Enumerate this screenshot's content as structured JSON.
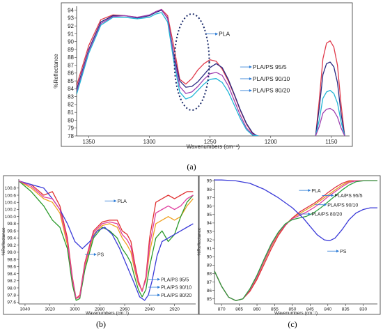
{
  "chart_data": [
    {
      "panel": "(a)",
      "type": "line",
      "xlabel": "Wavenumbers (cm⁻¹)",
      "ylabel": "%Reflectance",
      "xlim": [
        1360,
        1135
      ],
      "ylim": [
        78,
        94.5
      ],
      "xticks": [
        1350,
        1300,
        1250,
        1200,
        1150
      ],
      "yticks": [
        78,
        79,
        80,
        81,
        82,
        83,
        84,
        85,
        86,
        87,
        88,
        89,
        90,
        91,
        92,
        93,
        94
      ],
      "grid": false,
      "series": [
        {
          "name": "PLA",
          "color": "#e0394a",
          "x": [
            1360,
            1350,
            1340,
            1330,
            1320,
            1310,
            1300,
            1295,
            1290,
            1285,
            1280,
            1275,
            1270,
            1265,
            1260,
            1255,
            1250,
            1245,
            1240,
            1235,
            1230,
            1225,
            1220,
            1215,
            1212
          ],
          "y": [
            84.4,
            89.5,
            92.8,
            93.4,
            93.3,
            93.1,
            93.3,
            93.8,
            94.1,
            93.3,
            89.5,
            85.2,
            84.6,
            85.3,
            86.4,
            87.2,
            87.7,
            87.5,
            86.5,
            85,
            83.2,
            81.2,
            79.5,
            78.3,
            78
          ]
        },
        {
          "name": "PLA/PS 95/5",
          "color": "#2a2a82",
          "x": [
            1360,
            1350,
            1340,
            1330,
            1320,
            1310,
            1300,
            1295,
            1290,
            1285,
            1280,
            1275,
            1270,
            1265,
            1260,
            1255,
            1250,
            1245,
            1240,
            1235,
            1230,
            1225,
            1220,
            1215,
            1211
          ],
          "y": [
            83.9,
            89,
            92.5,
            93.3,
            93.3,
            93,
            93.3,
            93.7,
            94,
            93,
            88.5,
            85,
            84.2,
            84.3,
            84.9,
            85.8,
            86.7,
            87.2,
            86.7,
            85.2,
            83.3,
            81.3,
            79.6,
            78.4,
            78
          ]
        },
        {
          "name": "PLA/PS 90/10",
          "color": "#a040b0",
          "x": [
            1360,
            1350,
            1340,
            1330,
            1320,
            1310,
            1300,
            1295,
            1290,
            1285,
            1280,
            1275,
            1270,
            1265,
            1260,
            1255,
            1250,
            1245,
            1240,
            1235,
            1230,
            1225,
            1220,
            1215,
            1210
          ],
          "y": [
            83.6,
            88.8,
            92.3,
            93.2,
            93.3,
            93.1,
            93.4,
            93.8,
            94.1,
            92.9,
            88.2,
            84.3,
            83.4,
            83.6,
            84.3,
            85.2,
            85.9,
            86.1,
            85.7,
            84.4,
            82.5,
            80.6,
            79,
            78.2,
            78
          ]
        },
        {
          "name": "PLA/PS 80/20",
          "color": "#1fb5d6",
          "x": [
            1360,
            1350,
            1340,
            1330,
            1320,
            1310,
            1300,
            1295,
            1290,
            1285,
            1280,
            1275,
            1270,
            1265,
            1260,
            1255,
            1250,
            1245,
            1240,
            1235,
            1230,
            1225,
            1220,
            1215,
            1210
          ],
          "y": [
            83.3,
            88.5,
            92.1,
            93.1,
            93.1,
            92.9,
            93.1,
            93.5,
            93.7,
            92.5,
            87.6,
            83.6,
            82.7,
            83,
            83.8,
            84.6,
            85.2,
            85.3,
            84.8,
            83.6,
            81.9,
            80.2,
            78.8,
            78.1,
            78
          ]
        },
        {
          "name": "PLA ",
          "color": "#e0394a",
          "x": [
            1163,
            1160,
            1157,
            1154,
            1151,
            1148,
            1145,
            1142,
            1139
          ],
          "y": [
            78,
            82.5,
            87.8,
            89.8,
            90.1,
            89.3,
            87,
            82,
            78
          ]
        },
        {
          "name": "PLA/PS 95/5 ",
          "color": "#2a2a82",
          "x": [
            1163,
            1160,
            1157,
            1154,
            1151,
            1148,
            1145,
            1142,
            1139
          ],
          "y": [
            78,
            81.5,
            85.8,
            87.2,
            87.4,
            86.8,
            84.8,
            80.8,
            78
          ]
        },
        {
          "name": "PLA/PS 80/20 ",
          "color": "#1fb5d6",
          "x": [
            1163,
            1160,
            1157,
            1154,
            1151,
            1148,
            1145,
            1142,
            1139
          ],
          "y": [
            78,
            80,
            82.8,
            83.6,
            83.8,
            83.4,
            82.2,
            79.8,
            78
          ]
        },
        {
          "name": "PLA/PS 90/10 ",
          "color": "#a040b0",
          "x": [
            1163,
            1160,
            1157,
            1154,
            1151,
            1148,
            1145,
            1142,
            1139
          ],
          "y": [
            78,
            79.2,
            80.9,
            81.4,
            81.5,
            81.2,
            80.4,
            79,
            78
          ]
        }
      ],
      "labels": [
        {
          "text": "PLA",
          "x": 1244,
          "y": 90.8
        },
        {
          "text": "PLA/PS 95/5",
          "x": 1216,
          "y": 86.6
        },
        {
          "text": "PLA/PS 90/10",
          "x": 1216,
          "y": 85.1
        },
        {
          "text": "PLA/PS 80/20",
          "x": 1216,
          "y": 83.6
        }
      ]
    },
    {
      "panel": "(b)",
      "type": "line",
      "xlabel": "Wavenumbers (cm⁻¹)",
      "ylabel": "%Reflectance",
      "xlim": [
        3045,
        2903
      ],
      "ylim": [
        97.55,
        101.05
      ],
      "xticks": [
        3040,
        3020,
        3000,
        2980,
        2960,
        2940,
        2920
      ],
      "yticks": [
        97.6,
        97.8,
        98.0,
        98.2,
        98.4,
        98.6,
        98.8,
        99.0,
        99.2,
        99.4,
        99.6,
        99.8,
        100.0,
        100.2,
        100.4,
        100.6,
        100.8
      ],
      "grid": false,
      "series": [
        {
          "name": "PLA",
          "color": "#e03030",
          "x": [
            3045,
            3035,
            3025,
            3018,
            3012,
            3006,
            3002,
            2999,
            2996,
            2992,
            2985,
            2978,
            2972,
            2966,
            2962,
            2958,
            2955,
            2952,
            2949,
            2946,
            2943,
            2940,
            2935,
            2930,
            2925,
            2920,
            2915,
            2910,
            2905
          ],
          "y": [
            101,
            100.9,
            100.6,
            100.7,
            100.3,
            99.4,
            98.3,
            97.7,
            97.8,
            98.7,
            99.6,
            99.85,
            99.9,
            99.9,
            99.6,
            99.5,
            99.3,
            98.7,
            98.2,
            97.9,
            98.3,
            99.4,
            100.4,
            100.5,
            100.6,
            100.5,
            100.6,
            100.7,
            100.7
          ]
        },
        {
          "name": "PLA/PS 95/5",
          "color": "#f0a020",
          "x": [
            3045,
            3035,
            3025,
            3018,
            3012,
            3006,
            3002,
            2999,
            2996,
            2992,
            2985,
            2978,
            2972,
            2966,
            2962,
            2958,
            2955,
            2952,
            2949,
            2946,
            2943,
            2940,
            2935,
            2930,
            2925,
            2920,
            2915,
            2910,
            2905
          ],
          "y": [
            101,
            100.8,
            100.5,
            100.4,
            100.1,
            99.2,
            98.2,
            97.7,
            97.75,
            98.6,
            99.5,
            99.75,
            99.8,
            99.7,
            99.4,
            99.2,
            99,
            98.5,
            98.1,
            97.95,
            98.2,
            99,
            99.8,
            99.9,
            100,
            99.9,
            100,
            100.3,
            100.5
          ]
        },
        {
          "name": "PLA/PS 90/10",
          "color": "#2a9a2a",
          "x": [
            3045,
            3035,
            3025,
            3018,
            3012,
            3006,
            3002,
            2999,
            2996,
            2992,
            2985,
            2978,
            2972,
            2966,
            2962,
            2958,
            2955,
            2952,
            2949,
            2946,
            2943,
            2940,
            2935,
            2930,
            2925,
            2920,
            2915,
            2910,
            2905
          ],
          "y": [
            101,
            100.7,
            100.3,
            99.9,
            99.7,
            99.1,
            98.1,
            97.65,
            97.7,
            98.5,
            99.4,
            99.7,
            99.6,
            99.4,
            99.1,
            98.9,
            98.7,
            98.3,
            97.95,
            97.75,
            97.95,
            98.6,
            99.4,
            99.6,
            99.3,
            99.5,
            100,
            100.4,
            100.6
          ]
        },
        {
          "name": "PS",
          "color": "#3a3ad8",
          "x": [
            3045,
            3035,
            3025,
            3018,
            3012,
            3006,
            3000,
            2994,
            2988,
            2982,
            2976,
            2970,
            2964,
            2958,
            2952,
            2948,
            2944,
            2941,
            2938,
            2934,
            2930,
            2925,
            2920,
            2915,
            2910,
            2905
          ],
          "y": [
            101,
            100.9,
            100.8,
            100.5,
            100.2,
            99.8,
            99.3,
            99.1,
            99.3,
            99.6,
            99.7,
            99.5,
            99.1,
            98.6,
            98.1,
            97.75,
            97.65,
            97.8,
            98.2,
            98.9,
            99.3,
            99.4,
            99.5,
            99.6,
            99.7,
            99.8
          ]
        },
        {
          "name": "PLA/PS 80/20",
          "color": "#e040a0",
          "x": [
            3045,
            3035,
            3025,
            3018,
            3012,
            3006,
            3002,
            2999,
            2996,
            2992,
            2985,
            2978,
            2972,
            2966,
            2962,
            2958,
            2955,
            2952,
            2949,
            2946,
            2943,
            2940,
            2935,
            2930,
            2925,
            2920,
            2915,
            2910,
            2905
          ],
          "y": [
            101,
            100.85,
            100.55,
            100.5,
            100.2,
            99.3,
            98.25,
            97.7,
            97.75,
            98.65,
            99.55,
            99.8,
            99.85,
            99.8,
            99.5,
            99.35,
            99.15,
            98.6,
            98.15,
            97.9,
            98.25,
            99.2,
            100.1,
            100.2,
            100.3,
            100.2,
            100.3,
            100.5,
            100.6
          ]
        }
      ],
      "labels": [
        {
          "text": "PLA",
          "x": 2967,
          "y": 100.4
        },
        {
          "text": "PS",
          "x": 2983,
          "y": 98.9
        },
        {
          "text": "PLA/PS 95/5",
          "x": 2932,
          "y": 98.2
        },
        {
          "text": "PLA/PS 90/10",
          "x": 2932,
          "y": 97.98
        },
        {
          "text": "PLA/PS 80/20",
          "x": 2932,
          "y": 97.76
        }
      ]
    },
    {
      "panel": "(c)",
      "type": "line",
      "xlabel": "Wavenumbers (cm⁻¹)",
      "ylabel": "%Reflectance",
      "xlim": [
        872,
        826
      ],
      "ylim": [
        84.4,
        99.2
      ],
      "xticks": [
        870,
        865,
        860,
        855,
        850,
        845,
        840,
        835,
        830
      ],
      "yticks": [
        85,
        86,
        87,
        88,
        89,
        90,
        91,
        92,
        93,
        94,
        95,
        96,
        97,
        98,
        99
      ],
      "grid": false,
      "series": [
        {
          "name": "PLA/PS 95/5",
          "color": "#e0a020",
          "x": [
            872,
            870,
            868,
            866,
            864,
            862,
            860,
            858,
            856,
            854,
            852,
            850,
            848,
            846,
            844,
            842,
            840,
            838,
            836,
            834,
            832,
            830,
            828,
            826
          ],
          "y": [
            88.3,
            86.5,
            85.2,
            84.8,
            85,
            86,
            87.5,
            89.4,
            91.2,
            92.7,
            93.8,
            94.6,
            95.1,
            95.6,
            96.1,
            96.7,
            97.3,
            97.9,
            98.5,
            98.9,
            99,
            99,
            99,
            99
          ]
        },
        {
          "name": "PLA",
          "color": "#e03040",
          "x": [
            872,
            870,
            868,
            866,
            864,
            862,
            860,
            858,
            856,
            854,
            852,
            850,
            848,
            846,
            844,
            842,
            840,
            838,
            836,
            834,
            832,
            830,
            828,
            826
          ],
          "y": [
            88.3,
            86.5,
            85.2,
            84.8,
            85,
            85.9,
            87.3,
            89.1,
            90.9,
            92.5,
            93.7,
            94.6,
            95.3,
            95.8,
            96.3,
            96.9,
            97.6,
            98.2,
            98.7,
            99,
            99,
            99,
            99,
            99
          ]
        },
        {
          "name": "PLA/PS 90/10",
          "color": "#e040a0",
          "x": [
            872,
            870,
            868,
            866,
            864,
            862,
            860,
            858,
            856,
            854,
            852,
            850,
            848,
            846,
            844,
            842,
            840,
            838,
            836,
            834,
            832,
            830,
            828,
            826
          ],
          "y": [
            88.3,
            86.5,
            85.2,
            84.8,
            85,
            86.1,
            87.6,
            89.5,
            91.3,
            92.8,
            93.8,
            94.5,
            94.9,
            95.3,
            95.8,
            96.4,
            97.1,
            97.7,
            98.3,
            98.8,
            99,
            99,
            99,
            99
          ]
        },
        {
          "name": "PLA/PS 80/20",
          "color": "#2aa040",
          "x": [
            872,
            870,
            868,
            866,
            864,
            862,
            860,
            858,
            856,
            854,
            852,
            850,
            848,
            846,
            844,
            842,
            840,
            838,
            836,
            834,
            832,
            830,
            828,
            826
          ],
          "y": [
            88.3,
            86.5,
            85.2,
            84.8,
            85,
            86.2,
            87.8,
            89.7,
            91.5,
            92.9,
            93.9,
            94.4,
            94.6,
            94.8,
            95.2,
            95.8,
            96.5,
            97.2,
            97.9,
            98.5,
            98.9,
            99,
            99,
            99
          ]
        },
        {
          "name": "PS",
          "color": "#3a3ad8",
          "x": [
            872,
            870,
            866,
            862,
            858,
            854,
            850,
            847,
            845,
            843,
            841,
            839.5,
            838,
            836,
            834,
            832,
            830,
            828,
            826
          ],
          "y": [
            99.1,
            99.1,
            99,
            98.7,
            98,
            97,
            95.8,
            94.6,
            93.6,
            92.6,
            92,
            91.9,
            92.2,
            93.2,
            94.4,
            95.2,
            95.6,
            95.8,
            95.8
          ]
        }
      ],
      "labels": [
        {
          "text": "PLA",
          "x": 845,
          "y": 97.7
        },
        {
          "text": "PLA/PS 95/5",
          "x": 838.5,
          "y": 97.1
        },
        {
          "text": "PLA/PS 90/10",
          "x": 840.5,
          "y": 96
        },
        {
          "text": "PLA/PS 80/20",
          "x": 845,
          "y": 94.9
        },
        {
          "text": "PS",
          "x": 837,
          "y": 90.5
        }
      ]
    }
  ],
  "captions": {
    "a": "(a)",
    "b": "(b)",
    "c": "(c)"
  },
  "label_color": "#2b7bd6"
}
